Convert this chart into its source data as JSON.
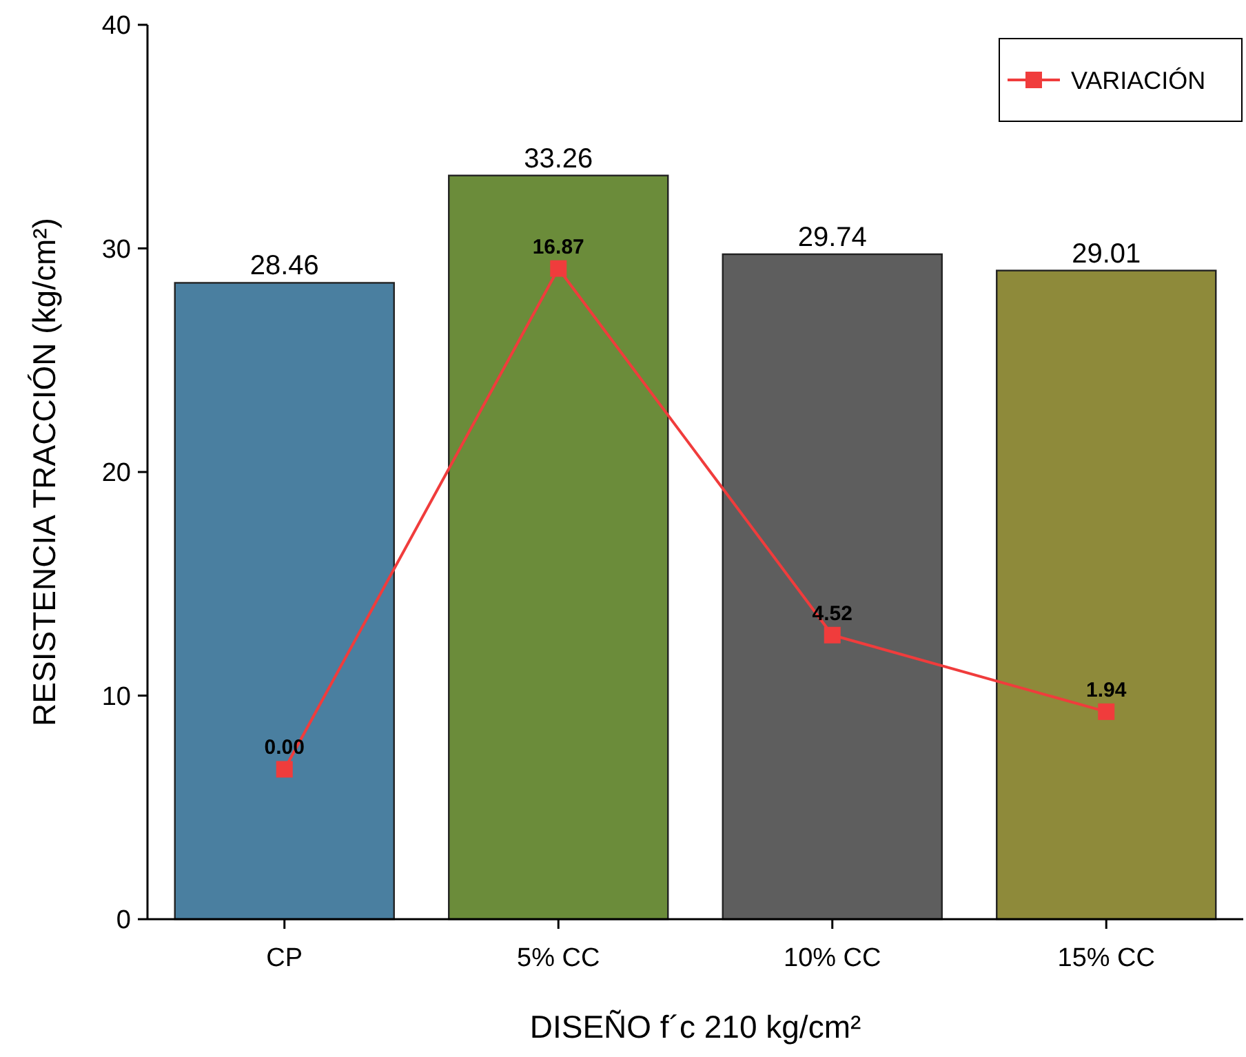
{
  "chart_data": {
    "type": "bar",
    "xlabel": "DISEÑO f´c 210 kg/cm²",
    "ylabel": "RESISTENCIA TRACCIÓN (kg/cm²)",
    "categories": [
      "CP",
      "5% CC",
      "10% CC",
      "15% CC"
    ],
    "series": [
      {
        "colors": [
          "#4a7fa0",
          "#6b8c3a",
          "#5e5e5e",
          "#8e8a3a"
        ],
        "values": [
          28.46,
          33.26,
          29.74,
          29.01
        ]
      },
      {
        "type": "line",
        "name": "VARIACIÓN",
        "color": "#f03c3c",
        "axis": "y2",
        "values": [
          0.0,
          16.87,
          4.52,
          1.94
        ],
        "value_labels": [
          "0.00",
          "16.87",
          "4.52",
          "1.94"
        ]
      }
    ],
    "ylim": [
      0,
      40
    ],
    "yticks": [
      0,
      10,
      20,
      30,
      40
    ],
    "y2lim": [
      -5.05,
      25.08
    ],
    "data_labels": true,
    "legend": "top right",
    "marker": "square",
    "line_style": "solid",
    "grid": false
  }
}
